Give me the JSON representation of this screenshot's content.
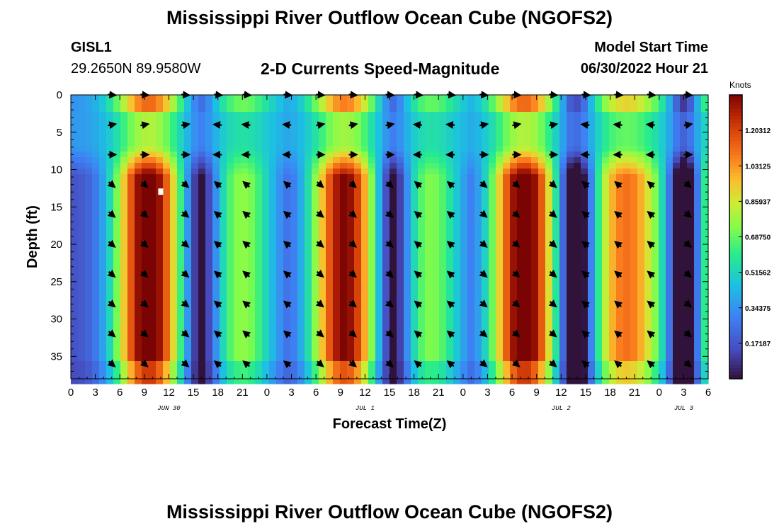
{
  "page": {
    "title": "Mississippi River Outflow Ocean Cube (NGOFS2)",
    "repeat_title": "Mississippi River Outflow Ocean Cube (NGOFS2)",
    "station_id": "GISL1",
    "location": "29.2650N  89.9580W",
    "subtitle": "2-D Currents Speed-Magnitude",
    "model_start_label": "Model Start Time",
    "model_start_value": "06/30/2022 Hour 21"
  },
  "chart_data": {
    "type": "heatmap",
    "title": "2-D Currents Speed-Magnitude",
    "xlabel": "Forecast Time(Z)",
    "ylabel": "Depth (ft)",
    "x_range_hours": [
      0,
      78
    ],
    "y_range_ft": [
      0,
      38
    ],
    "y_inverted": true,
    "x_ticks": [
      {
        "h": 0,
        "label": "0"
      },
      {
        "h": 3,
        "label": "3"
      },
      {
        "h": 6,
        "label": "6"
      },
      {
        "h": 9,
        "label": "9"
      },
      {
        "h": 12,
        "label": "12"
      },
      {
        "h": 15,
        "label": "15"
      },
      {
        "h": 18,
        "label": "18"
      },
      {
        "h": 21,
        "label": "21"
      },
      {
        "h": 24,
        "label": "0"
      },
      {
        "h": 27,
        "label": "3"
      },
      {
        "h": 30,
        "label": "6"
      },
      {
        "h": 33,
        "label": "9"
      },
      {
        "h": 36,
        "label": "12"
      },
      {
        "h": 39,
        "label": "15"
      },
      {
        "h": 42,
        "label": "18"
      },
      {
        "h": 45,
        "label": "21"
      },
      {
        "h": 48,
        "label": "0"
      },
      {
        "h": 51,
        "label": "3"
      },
      {
        "h": 54,
        "label": "6"
      },
      {
        "h": 57,
        "label": "9"
      },
      {
        "h": 60,
        "label": "12"
      },
      {
        "h": 63,
        "label": "15"
      },
      {
        "h": 66,
        "label": "18"
      },
      {
        "h": 69,
        "label": "21"
      },
      {
        "h": 72,
        "label": "0"
      },
      {
        "h": 75,
        "label": "3"
      },
      {
        "h": 78,
        "label": "6"
      }
    ],
    "date_labels": [
      {
        "h": 12,
        "label": "JUN 30"
      },
      {
        "h": 36,
        "label": "JUL 1"
      },
      {
        "h": 60,
        "label": "JUL 2"
      },
      {
        "h": 75,
        "label": "JUL 3"
      }
    ],
    "y_ticks": [
      0,
      5,
      10,
      15,
      20,
      25,
      30,
      35
    ],
    "colorbar": {
      "label": "Knots",
      "min": 0.0,
      "max": 1.375,
      "tick_labels": [
        "1.20312",
        "1.03125",
        "0.85937",
        "0.68750",
        "0.51562",
        "0.34375",
        "0.17187"
      ],
      "tick_values": [
        1.20312,
        1.03125,
        0.85937,
        0.6875,
        0.51562,
        0.34375,
        0.17187
      ]
    },
    "speed_model": {
      "ebb_peaks": [
        {
          "t": 9.5,
          "amp": 1.3,
          "sigma": 3.0
        },
        {
          "t": 33.5,
          "amp": 1.22,
          "sigma": 3.0
        },
        {
          "t": 55.5,
          "amp": 1.3,
          "sigma": 3.0
        },
        {
          "t": 80.0,
          "amp": 0.85,
          "sigma": 2.5
        }
      ],
      "flood_peaks": [
        {
          "t": 21.0,
          "amp": 0.6,
          "sigma": 3.0
        },
        {
          "t": 44.0,
          "amp": 0.58,
          "sigma": 3.0
        },
        {
          "t": 68.0,
          "amp": 0.95,
          "sigma": 3.6
        }
      ],
      "slack_minima": [
        {
          "t": 16.0,
          "width": 1.5,
          "depth": 0.3
        },
        {
          "t": 39.5,
          "width": 1.5,
          "depth": 0.35
        },
        {
          "t": 62.0,
          "width": 1.6,
          "depth": 0.55
        },
        {
          "t": 75.0,
          "width": 1.3,
          "depth": 0.55
        }
      ],
      "surface_value": 0.3,
      "mid_depth_blend": 0.55,
      "lower_depth_start": 11.0
    },
    "vector_rows_ft": [
      0,
      4,
      8,
      12,
      16,
      20,
      24,
      28,
      32,
      36
    ],
    "vector_times_h": [
      5,
      9,
      14,
      18,
      21.5,
      26.5,
      30.5,
      34.5,
      39,
      42.5,
      46.5,
      50.5,
      54.5,
      59,
      63,
      67,
      71,
      75.5
    ],
    "vector_directions": {
      "ebb_lower": "down-right",
      "flood_lower": "up-left",
      "surface_row": "right",
      "near_surface_ebb": "right",
      "near_surface_flood": "left"
    },
    "markers": [
      {
        "type": "white-square",
        "h": 11,
        "depth": 13
      }
    ]
  }
}
